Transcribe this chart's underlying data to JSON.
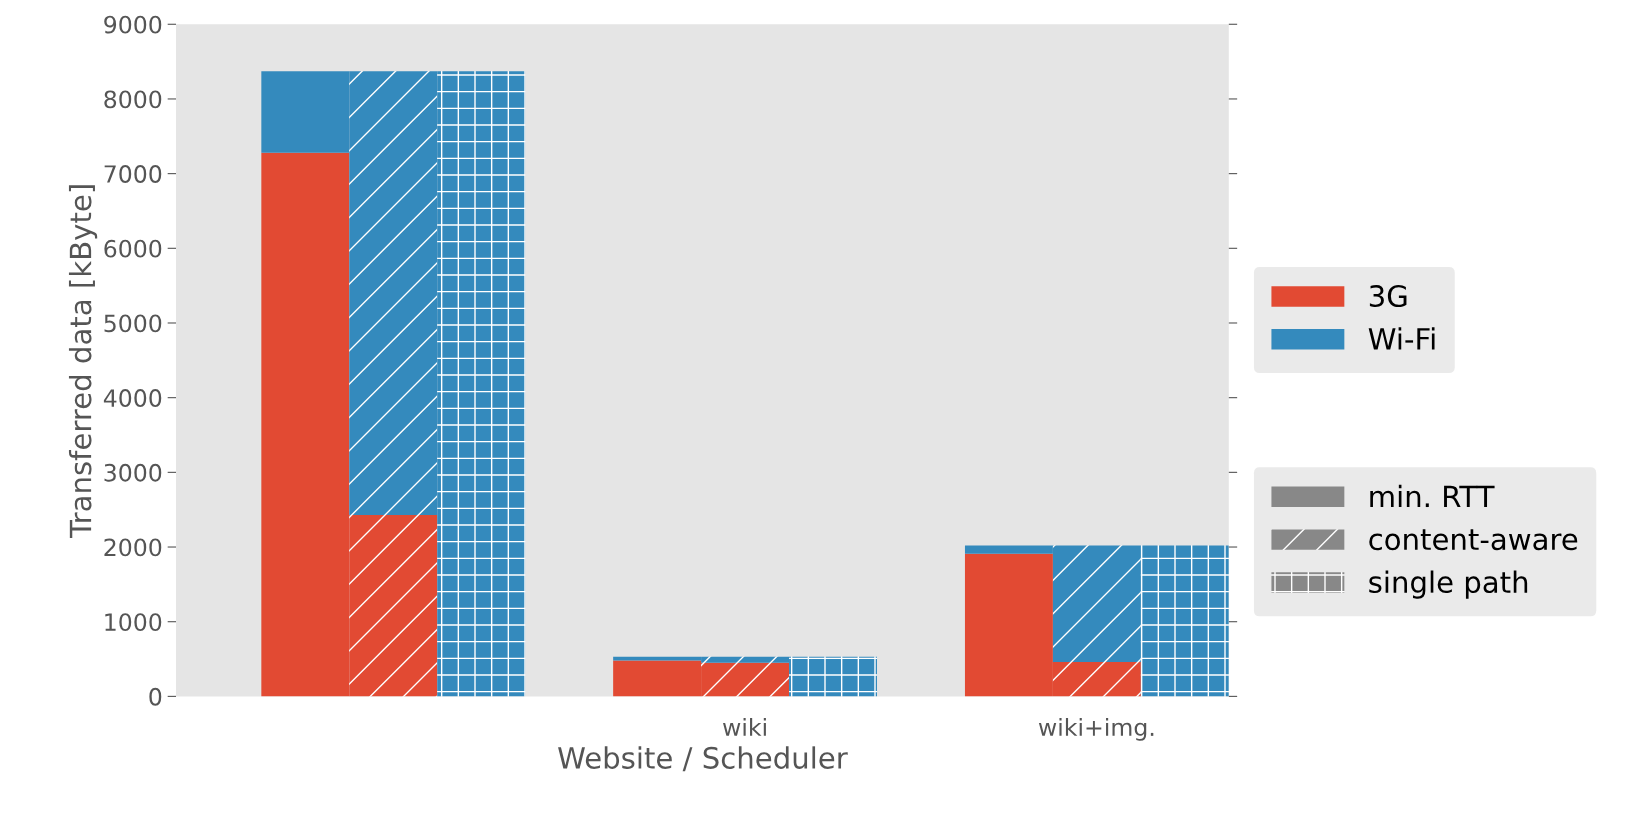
{
  "chart_data": {
    "type": "bar",
    "stacked": true,
    "xlabel": "Website / Scheduler",
    "ylabel": "Transferred data [kByte]",
    "categories": [
      null,
      null,
      null,
      null,
      "wiki",
      null,
      null,
      "wiki+img.",
      null
    ],
    "series": [
      {
        "name": "3G",
        "color": "#e24a33",
        "values": [
          7280,
          2430,
          0,
          480,
          450,
          0,
          1910,
          460,
          0
        ]
      },
      {
        "name": "Wi-Fi",
        "color": "#348abd",
        "values": [
          1090,
          5940,
          8370,
          50,
          80,
          530,
          110,
          1560,
          2020
        ]
      }
    ],
    "annotations": [
      "min. RTT",
      "content-aware",
      "single path"
    ],
    "ylim": [
      0,
      9000
    ],
    "yticks": [
      0,
      1000,
      2000,
      3000,
      4000,
      5000,
      6000,
      7000,
      8000,
      9000
    ],
    "grid": false,
    "legend": "right"
  }
}
